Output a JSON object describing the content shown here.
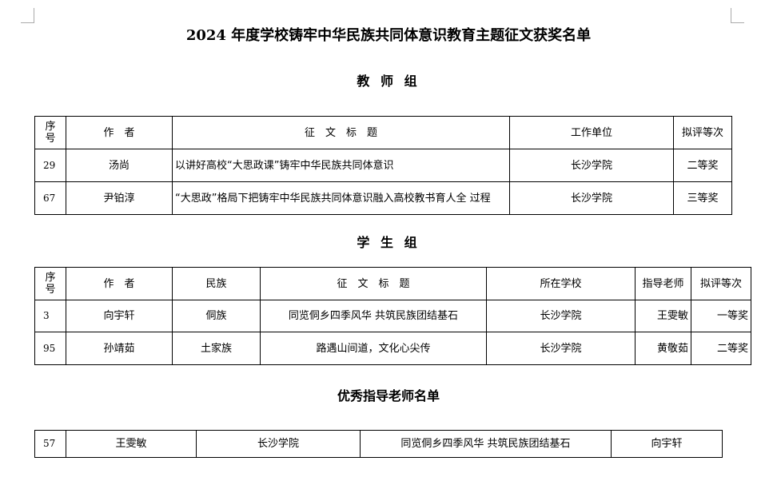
{
  "title": "2024 年度学校铸牢中华民族共同体意识教育主题征文获奖名单",
  "teacher_group": {
    "heading": "教 师 组",
    "headers": [
      "序号",
      "作　者",
      "征　文　标　题",
      "工作单位",
      "拟评等次"
    ],
    "rows": [
      [
        "29",
        "汤尚",
        "以讲好高校“大思政课”铸牢中华民族共同体意识",
        "长沙学院",
        "二等奖"
      ],
      [
        "67",
        "尹铂淳",
        "“大思政”格局下把铸牢中华民族共同体意识融入高校教书育人全 过程",
        "长沙学院",
        "三等奖"
      ]
    ]
  },
  "student_group": {
    "heading": "学 生 组",
    "headers": [
      "序号",
      "作　者",
      "民族",
      "征　文　标　题",
      "所在学校",
      "指导老师",
      "拟评等次"
    ],
    "rows": [
      [
        "3",
        "向宇轩",
        "侗族",
        "同览侗乡四季风华 共筑民族团结基石",
        "长沙学院",
        "王雯敏",
        "一等奖"
      ],
      [
        "95",
        "孙靖茹",
        "土家族",
        "路遇山间道，文化心尖传",
        "长沙学院",
        "黄敬茹",
        "二等奖"
      ]
    ]
  },
  "advisor_list": {
    "heading": "优秀指导老师名单",
    "rows": [
      [
        "57",
        "王雯敏",
        "长沙学院",
        "同览侗乡四季风华 共筑民族团结基石",
        "向宇轩"
      ]
    ]
  }
}
